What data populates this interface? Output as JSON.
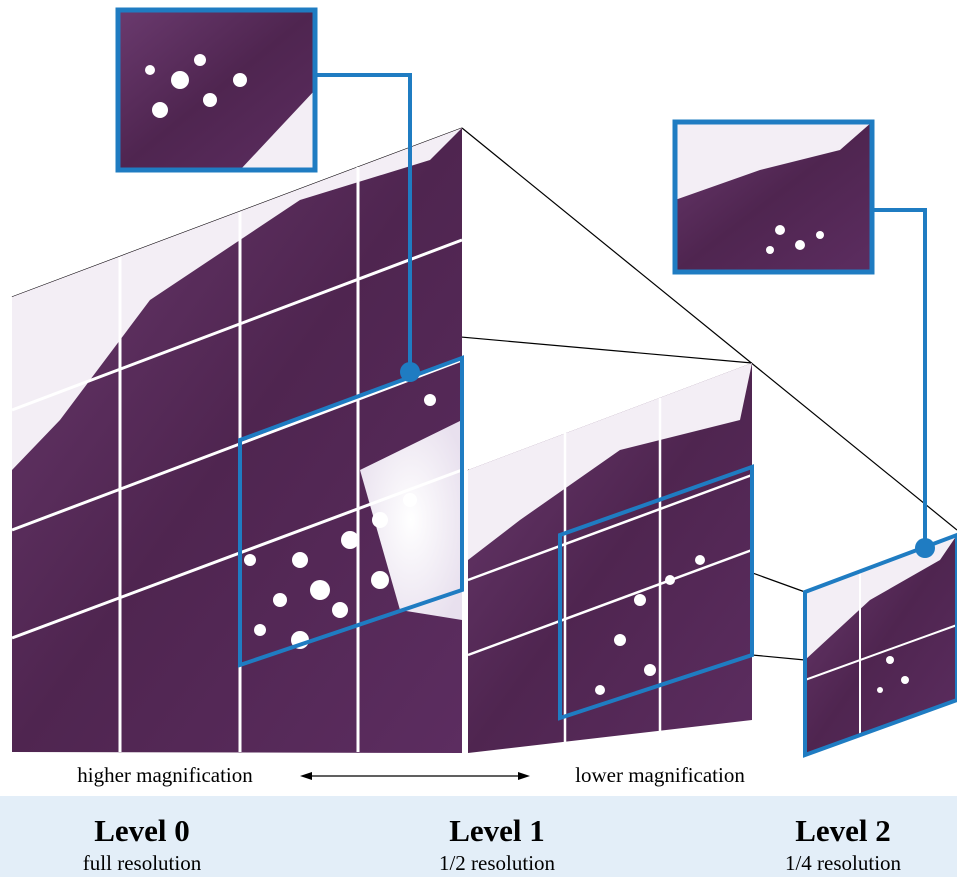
{
  "axis": {
    "left": "higher magnification",
    "right": "lower magnification"
  },
  "levels": [
    {
      "title": "Level 0",
      "subtitle": "full resolution"
    },
    {
      "title": "Level 1",
      "subtitle": "1/2 resolution"
    },
    {
      "title": "Level 2",
      "subtitle": "1/4 resolution"
    }
  ]
}
